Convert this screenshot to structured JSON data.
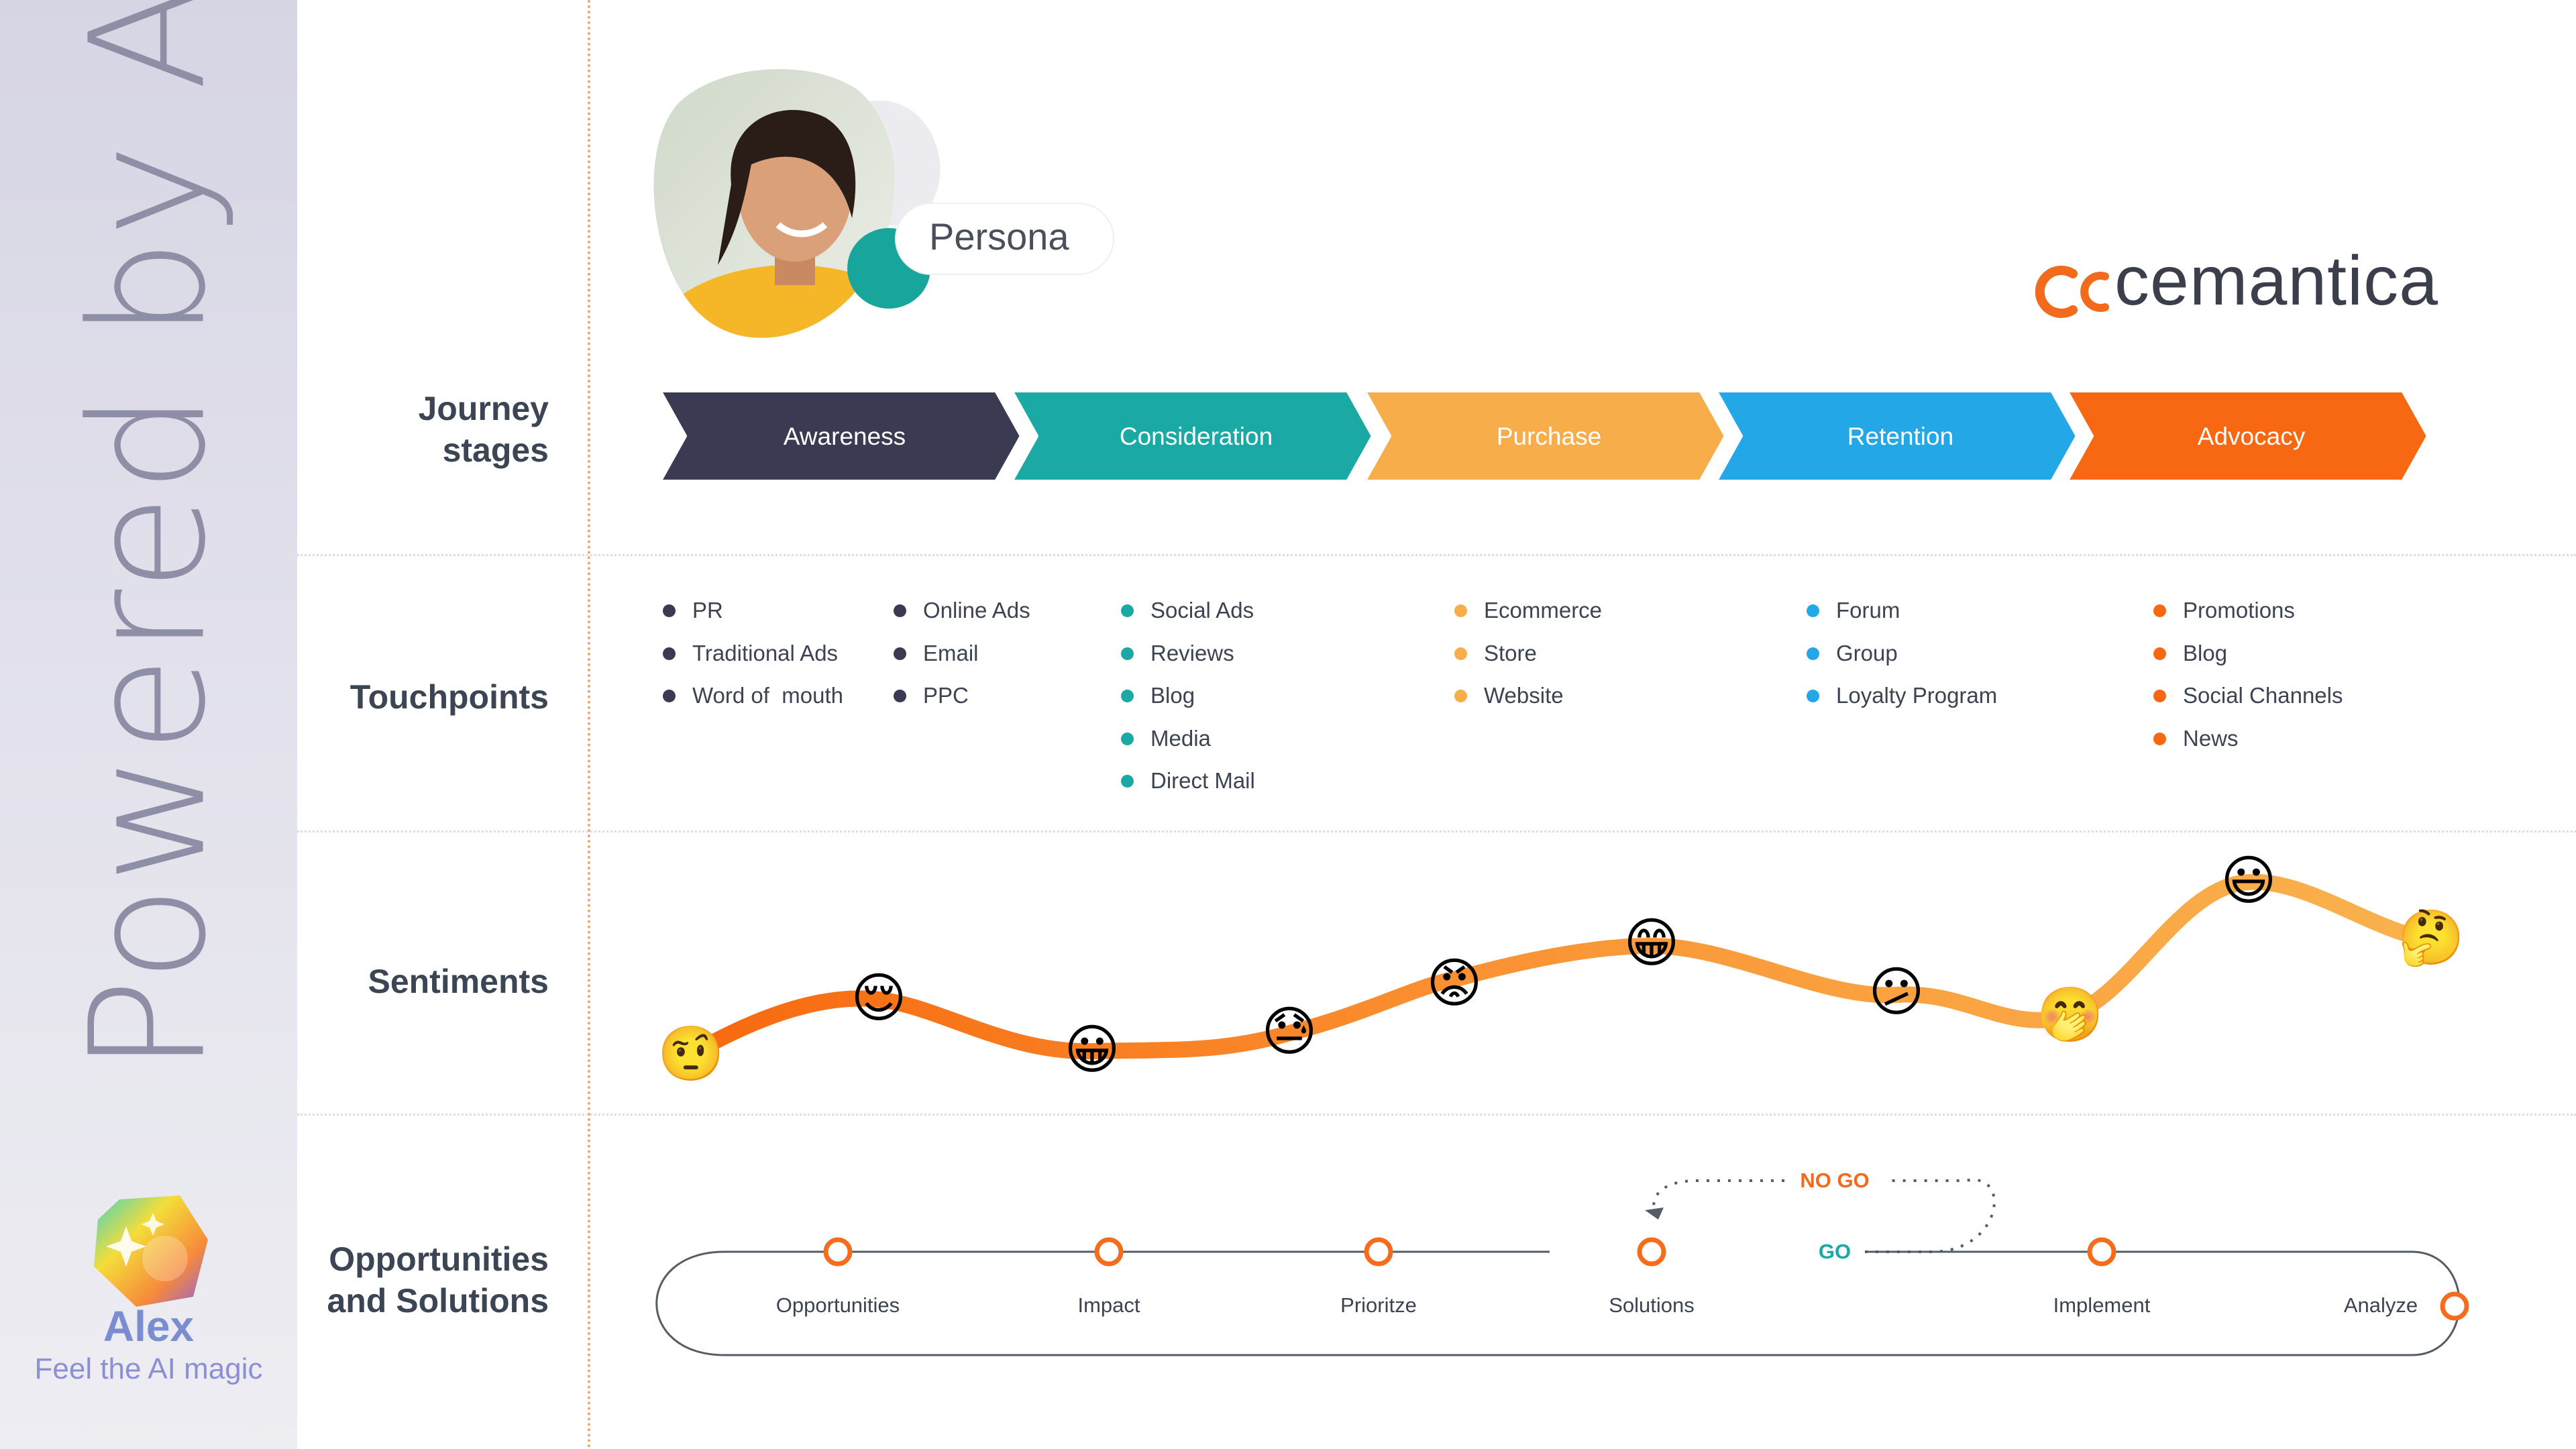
{
  "sidebar": {
    "vertical_text": "Powered by AI",
    "app_name": "Alex",
    "tagline": "Feel the AI magic"
  },
  "persona": {
    "label": "Persona"
  },
  "brand": {
    "name": "cemantica",
    "color": "#3a3f4b",
    "accent": "#f26b1d"
  },
  "rows": {
    "journey": [
      "Journey",
      "stages"
    ],
    "touchpoints": "Touchpoints",
    "sentiments": "Sentiments",
    "opportunities": [
      "Opportunities",
      "and Solutions"
    ]
  },
  "stages": [
    {
      "label": "Awareness",
      "color": "#3a3a52"
    },
    {
      "label": "Consideration",
      "color": "#1aa9a5"
    },
    {
      "label": "Purchase",
      "color": "#f7ae4a"
    },
    {
      "label": "Retention",
      "color": "#23a7e6"
    },
    {
      "label": "Advocacy",
      "color": "#f86812"
    }
  ],
  "touchpoints": [
    {
      "color": "#3a3a52",
      "items": [
        "PR",
        "Traditional Ads",
        "Word of  mouth"
      ]
    },
    {
      "color": "#3a3a52",
      "items": [
        "Online Ads",
        "Email",
        "PPC"
      ]
    },
    {
      "color": "#1aa9a5",
      "items": [
        "Social Ads",
        "Reviews",
        "Blog",
        "Media",
        "Direct Mail"
      ]
    },
    {
      "color": "#f7ae4a",
      "items": [
        "Ecommerce",
        "Store",
        "Website"
      ]
    },
    {
      "color": "#23a7e6",
      "items": [
        "Forum",
        "Group",
        "Loyalty Program"
      ]
    },
    {
      "color": "#f86812",
      "items": [
        "Promotions",
        "Blog",
        "Social Channels",
        "News"
      ]
    }
  ],
  "sentiments": [
    {
      "emoji": "🤨",
      "name": "skeptical-emoji"
    },
    {
      "emoji": "😌",
      "name": "relieved-emoji"
    },
    {
      "emoji": "😀",
      "name": "grinning-emoji"
    },
    {
      "emoji": "😓",
      "name": "sweat-emoji"
    },
    {
      "emoji": "😡",
      "name": "angry-emoji"
    },
    {
      "emoji": "😁",
      "name": "beaming-emoji"
    },
    {
      "emoji": "😕",
      "name": "confused-emoji"
    },
    {
      "emoji": "🤭",
      "name": "hand-over-mouth-emoji"
    },
    {
      "emoji": "😃",
      "name": "smiling-emoji"
    },
    {
      "emoji": "🤔",
      "name": "thinking-emoji"
    }
  ],
  "process": {
    "steps": [
      "Opportunities",
      "Impact",
      "Prioritze",
      "Solutions",
      "Implement",
      "Analyze"
    ],
    "go": "GO",
    "no_go": "NO GO",
    "go_color": "#1aa9a5",
    "no_go_color": "#f26b1d"
  }
}
